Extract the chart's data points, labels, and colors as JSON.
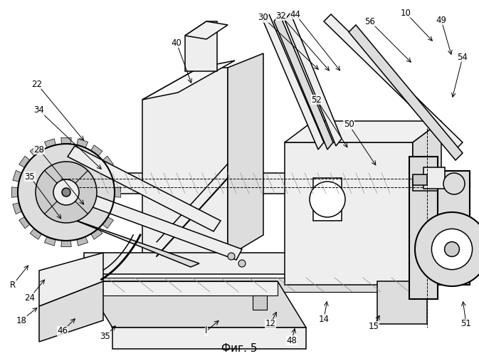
{
  "caption": "Фиг. 5",
  "background_color": "#ffffff",
  "figsize": [
    6.73,
    5.0
  ],
  "dpi": 100,
  "image_data": ""
}
